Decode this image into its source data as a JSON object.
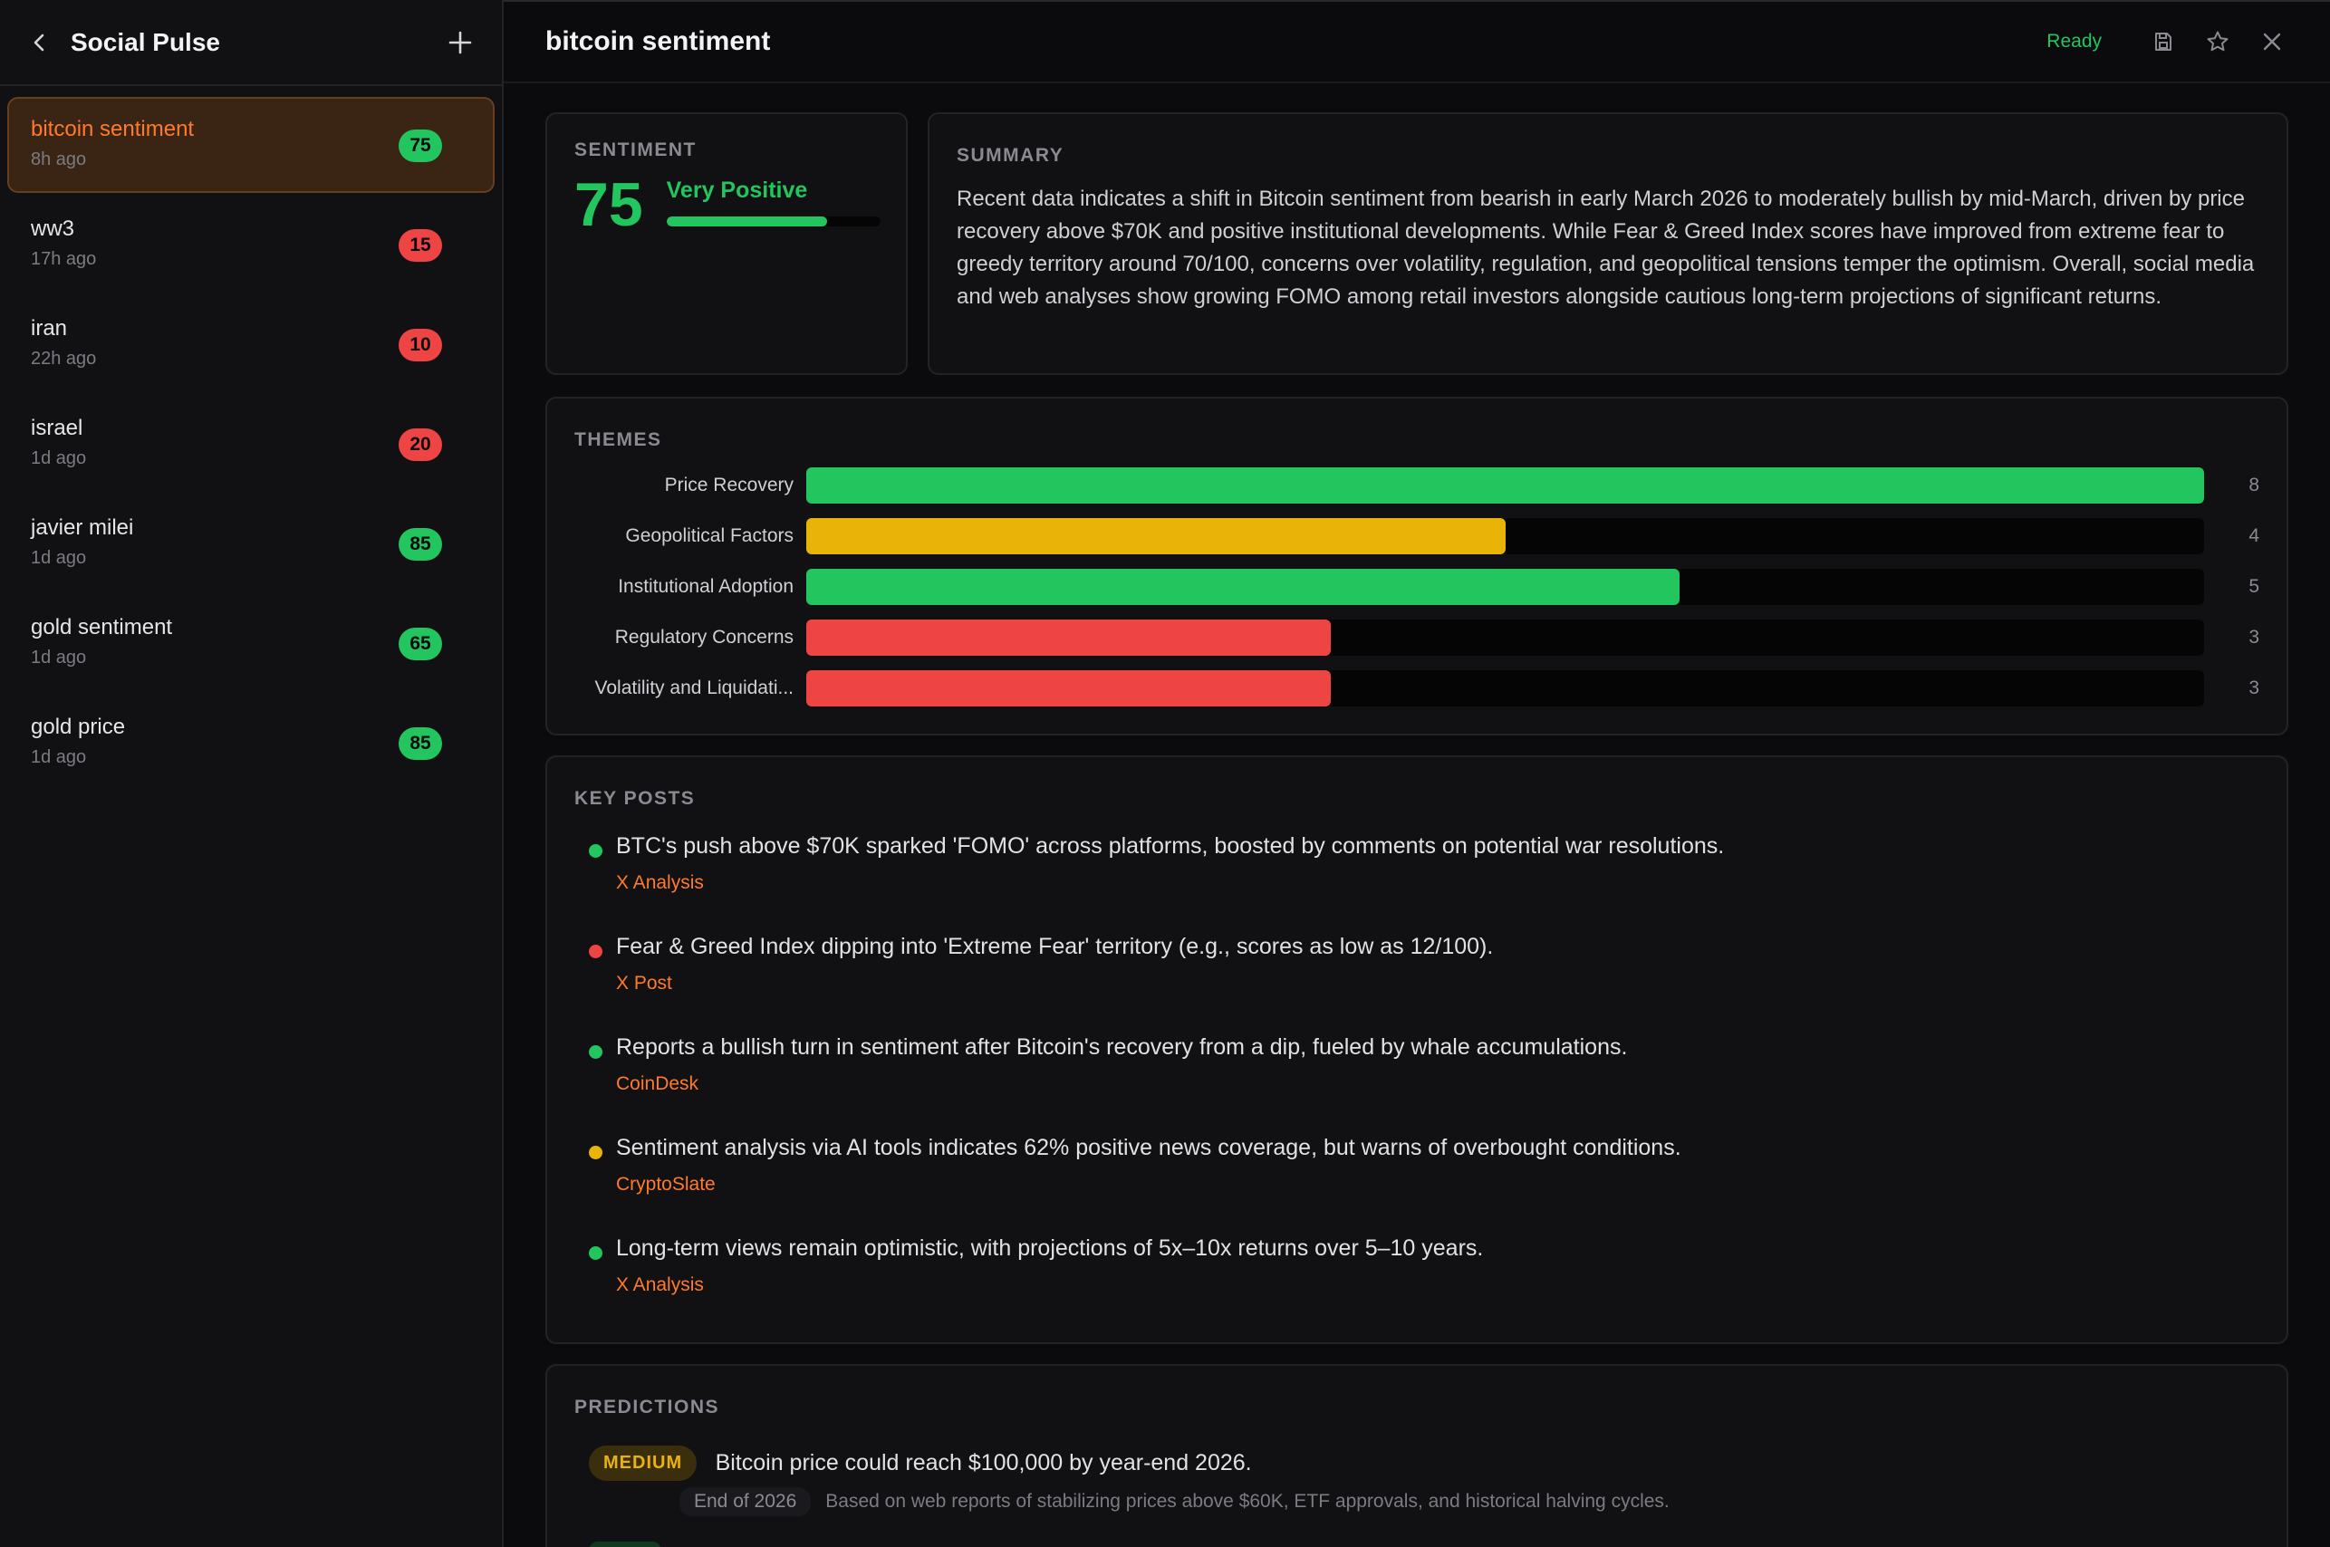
{
  "sidebar": {
    "title": "Social Pulse",
    "items": [
      {
        "name": "bitcoin sentiment",
        "time": "8h ago",
        "score": "75",
        "tone": "green",
        "active": true
      },
      {
        "name": "ww3",
        "time": "17h ago",
        "score": "15",
        "tone": "red",
        "active": false
      },
      {
        "name": "iran",
        "time": "22h ago",
        "score": "10",
        "tone": "red",
        "active": false
      },
      {
        "name": "israel",
        "time": "1d ago",
        "score": "20",
        "tone": "red",
        "active": false
      },
      {
        "name": "javier milei",
        "time": "1d ago",
        "score": "85",
        "tone": "green",
        "active": false
      },
      {
        "name": "gold sentiment",
        "time": "1d ago",
        "score": "65",
        "tone": "green",
        "active": false
      },
      {
        "name": "gold price",
        "time": "1d ago",
        "score": "85",
        "tone": "green",
        "active": false
      }
    ]
  },
  "topbar": {
    "title": "bitcoin sentiment",
    "status": "Ready"
  },
  "sentiment": {
    "label": "SENTIMENT",
    "score": "75",
    "score_value": 75,
    "verdict": "Very Positive",
    "color": "#22c55e"
  },
  "summary": {
    "label": "SUMMARY",
    "text": "Recent data indicates a shift in Bitcoin sentiment from bearish in early March 2026 to moderately bullish by mid-March, driven by price recovery above $70K and positive institutional developments. While Fear & Greed Index scores have improved from extreme fear to greedy territory around 70/100, concerns over volatility, regulation, and geopolitical tensions temper the optimism. Overall, social media and web analyses show growing FOMO among retail investors alongside cautious long-term projections of significant returns."
  },
  "themes": {
    "label": "THEMES",
    "max": 8,
    "items": [
      {
        "name": "Price Recovery",
        "count": 8,
        "count_label": "8",
        "color": "#22c55e"
      },
      {
        "name": "Geopolitical Factors",
        "count": 4,
        "count_label": "4",
        "color": "#eab308"
      },
      {
        "name": "Institutional Adoption",
        "count": 5,
        "count_label": "5",
        "color": "#22c55e"
      },
      {
        "name": "Regulatory Concerns",
        "count": 3,
        "count_label": "3",
        "color": "#ef4444"
      },
      {
        "name": "Volatility and Liquidati...",
        "count": 3,
        "count_label": "3",
        "color": "#ef4444"
      }
    ]
  },
  "key_posts": {
    "label": "KEY POSTS",
    "items": [
      {
        "text": "BTC's push above $70K sparked 'FOMO' across platforms, boosted by comments on potential war resolutions.",
        "source": "X Analysis",
        "color": "#22c55e"
      },
      {
        "text": "Fear & Greed Index dipping into 'Extreme Fear' territory (e.g., scores as low as 12/100).",
        "source": "X Post",
        "color": "#ef4444"
      },
      {
        "text": "Reports a bullish turn in sentiment after Bitcoin's recovery from a dip, fueled by whale accumulations.",
        "source": "CoinDesk",
        "color": "#22c55e"
      },
      {
        "text": "Sentiment analysis via AI tools indicates 62% positive news coverage, but warns of overbought conditions.",
        "source": "CryptoSlate",
        "color": "#eab308"
      },
      {
        "text": "Long-term views remain optimistic, with projections of 5x–10x returns over 5–10 years.",
        "source": "X Analysis",
        "color": "#22c55e"
      }
    ]
  },
  "predictions": {
    "label": "PREDICTIONS",
    "items": [
      {
        "confidence": "MEDIUM",
        "text": "Bitcoin price could reach $100,000 by year-end 2026.",
        "timeframe": "End of 2026",
        "basis": "Based on web reports of stabilizing prices above $60K, ETF approvals, and historical halving cycles."
      }
    ]
  }
}
